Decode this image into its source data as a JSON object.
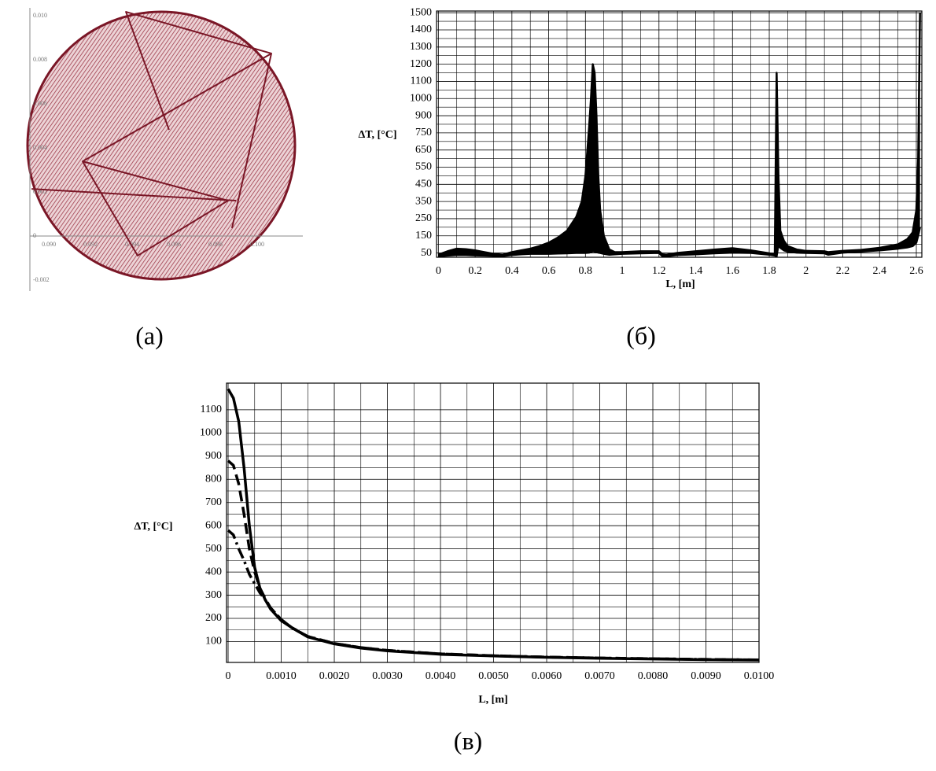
{
  "chart_data": [
    {
      "type": "line",
      "caption": "(а)",
      "xlim": [
        0.08909,
        0.10219
      ],
      "ylim": [
        -0.0025,
        0.01036
      ],
      "xticks": [
        {
          "value": 0.09,
          "label": "0.090"
        },
        {
          "value": 0.092,
          "label": "0.092"
        },
        {
          "value": 0.094,
          "label": "0.094"
        },
        {
          "value": 0.096,
          "label": "0.096"
        },
        {
          "value": 0.098,
          "label": "0.098"
        },
        {
          "value": 0.1,
          "label": "0.100"
        }
      ],
      "yticks": [
        {
          "value": -0.002,
          "label": "-0.002"
        },
        0,
        {
          "value": 0.002,
          "label": "0.002"
        },
        {
          "value": 0.004,
          "label": "0.004"
        },
        {
          "value": 0.006,
          "label": "0.006"
        },
        {
          "value": 0.008,
          "label": "0.008"
        },
        {
          "value": 0.01,
          "label": "0.010"
        }
      ],
      "grid": false,
      "series": [
        {
          "color": "#7a1626",
          "x": [
            0.09577,
            0.0937,
            0.10068,
            0.09879
          ],
          "values": [
            0.00482,
            0.01018,
            0.00829,
            0.00036
          ]
        },
        {
          "color": "#7a1626",
          "x": [
            0.10068,
            0.09162,
            0.09426,
            0.0986,
            0.09162
          ],
          "values": [
            0.00829,
            0.00339,
            -0.00089,
            0.00161,
            0.00339
          ]
        },
        {
          "color": "#7a1626",
          "x": [
            0.08917,
            0.09898
          ],
          "values": [
            0.00214,
            0.00161
          ]
        }
      ]
    },
    {
      "type": "band",
      "caption": "(б)",
      "xlabel": "L, [m]",
      "ylabel": "ΔT, [°C]",
      "xlim": [
        -0.01,
        2.63
      ],
      "ylim": [
        25,
        1510
      ],
      "yscale": "tick-index",
      "xticks": [
        0,
        0.2,
        0.4,
        0.6,
        0.8,
        1,
        1.2,
        1.4,
        1.6,
        1.8,
        2,
        2.2,
        2.4,
        2.6
      ],
      "yticks": [
        50,
        150,
        250,
        350,
        450,
        550,
        650,
        750,
        900,
        1000,
        1100,
        1200,
        1300,
        1400,
        1500
      ],
      "grid": true,
      "minor_grid": true,
      "x": [
        0,
        0.05,
        0.1,
        0.15,
        0.2,
        0.25,
        0.3,
        0.35,
        0.4,
        0.45,
        0.5,
        0.55,
        0.6,
        0.65,
        0.7,
        0.75,
        0.78,
        0.8,
        0.82,
        0.83,
        0.84,
        0.85,
        0.86,
        0.87,
        0.88,
        0.9,
        0.93,
        0.96,
        1.0,
        1.1,
        1.2,
        1.22,
        1.24,
        1.3,
        1.4,
        1.5,
        1.6,
        1.7,
        1.8,
        1.83,
        1.84,
        1.85,
        1.86,
        1.88,
        1.9,
        1.95,
        2.0,
        2.1,
        2.12,
        2.2,
        2.3,
        2.4,
        2.5,
        2.55,
        2.58,
        2.6,
        2.61,
        2.62
      ],
      "series": [
        {
          "color": "#000000",
          "values": [
            40,
            60,
            75,
            72,
            65,
            55,
            45,
            40,
            55,
            65,
            75,
            90,
            110,
            140,
            180,
            260,
            350,
            500,
            800,
            1000,
            1200,
            1150,
            900,
            500,
            300,
            150,
            70,
            55,
            55,
            60,
            60,
            42,
            40,
            50,
            60,
            70,
            78,
            65,
            48,
            42,
            1150,
            500,
            180,
            120,
            90,
            70,
            62,
            60,
            55,
            62,
            68,
            80,
            100,
            130,
            170,
            300,
            600,
            1500
          ]
        },
        {
          "color": "#000000",
          "values": [
            30,
            35,
            38,
            38,
            36,
            35,
            33,
            32,
            38,
            42,
            45,
            45,
            45,
            47,
            48,
            50,
            50,
            50,
            52,
            55,
            60,
            58,
            55,
            52,
            50,
            45,
            40,
            42,
            45,
            48,
            50,
            30,
            30,
            38,
            42,
            48,
            52,
            50,
            40,
            35,
            30,
            100,
            80,
            65,
            58,
            52,
            50,
            48,
            40,
            52,
            58,
            65,
            75,
            82,
            90,
            110,
            150,
            200
          ]
        }
      ]
    },
    {
      "type": "line",
      "caption": "(в)",
      "xlabel": "L, [m]",
      "ylabel": "ΔT, [°C]",
      "xlim": [
        -3e-05,
        0.01
      ],
      "ylim": [
        10,
        1215
      ],
      "xticks": [
        0,
        {
          "value": 0.001,
          "label": "0.0010"
        },
        {
          "value": 0.002,
          "label": "0.0020"
        },
        {
          "value": 0.003,
          "label": "0.0030"
        },
        {
          "value": 0.004,
          "label": "0.0040"
        },
        {
          "value": 0.005,
          "label": "0.0050"
        },
        {
          "value": 0.006,
          "label": "0.0060"
        },
        {
          "value": 0.007,
          "label": "0.0070"
        },
        {
          "value": 0.008,
          "label": "0.0080"
        },
        {
          "value": 0.009,
          "label": "0.0090"
        },
        {
          "value": 0.01,
          "label": "0.0100"
        }
      ],
      "yticks": [
        100,
        200,
        300,
        400,
        500,
        600,
        700,
        800,
        900,
        1000,
        1100
      ],
      "grid": true,
      "minor_grid": true,
      "x": [
        0,
        0.0001,
        0.0002,
        0.0003,
        0.0004,
        0.0005,
        0.0006,
        0.0007,
        0.0008,
        0.001,
        0.0012,
        0.0015,
        0.002,
        0.0025,
        0.003,
        0.004,
        0.005,
        0.006,
        0.007,
        0.008,
        0.009,
        0.01
      ],
      "series": [
        {
          "color": "#000000",
          "linestyle": "solid",
          "values": [
            1190,
            1150,
            1050,
            850,
            600,
            420,
            330,
            280,
            240,
            190,
            160,
            120,
            90,
            72,
            60,
            45,
            38,
            32,
            28,
            25,
            22,
            20
          ]
        },
        {
          "color": "#000000",
          "linestyle": "dashed",
          "values": [
            880,
            860,
            780,
            650,
            500,
            400,
            330,
            285,
            245,
            195,
            160,
            122,
            92,
            74,
            62,
            47,
            39,
            33,
            29,
            26,
            23,
            21
          ]
        },
        {
          "color": "#000000",
          "linestyle": "dashdot",
          "values": [
            580,
            560,
            500,
            450,
            390,
            350,
            310,
            280,
            245,
            195,
            160,
            122,
            92,
            74,
            62,
            47,
            39,
            33,
            29,
            26,
            23,
            21
          ]
        }
      ]
    }
  ]
}
